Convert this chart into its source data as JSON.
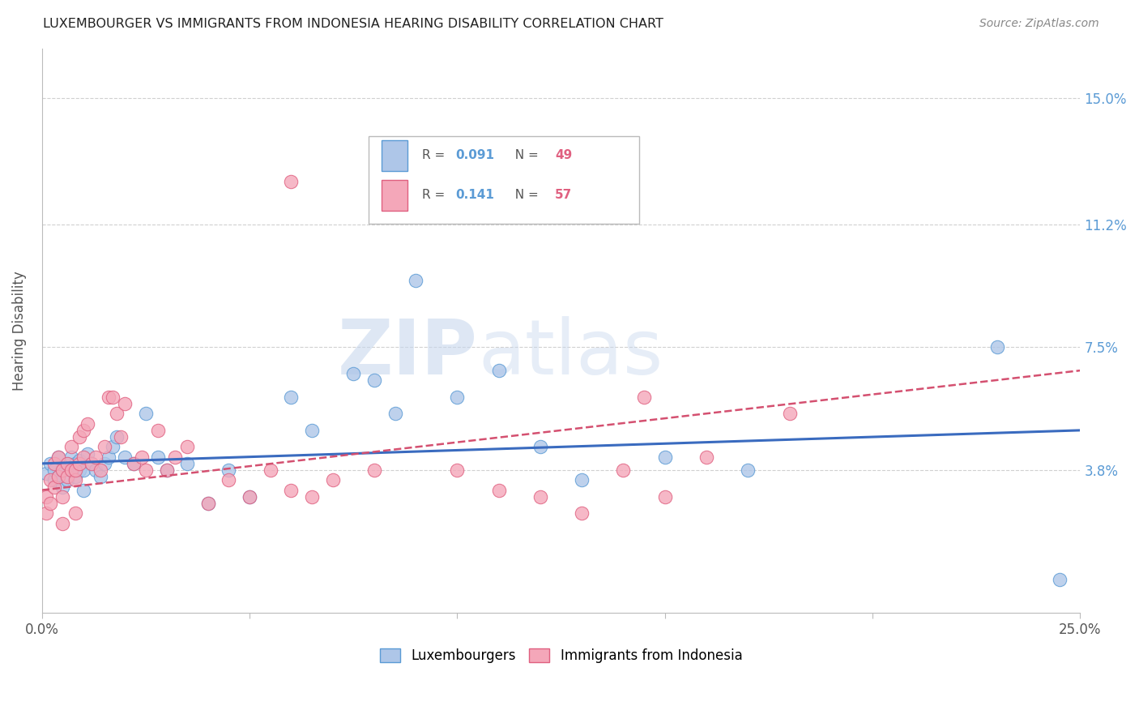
{
  "title": "LUXEMBOURGER VS IMMIGRANTS FROM INDONESIA HEARING DISABILITY CORRELATION CHART",
  "source": "Source: ZipAtlas.com",
  "ylabel": "Hearing Disability",
  "watermark_part1": "ZIP",
  "watermark_part2": "atlas",
  "xlim": [
    0.0,
    0.25
  ],
  "ylim": [
    -0.005,
    0.165
  ],
  "xticks": [
    0.0,
    0.05,
    0.1,
    0.15,
    0.2,
    0.25
  ],
  "yticks_right": [
    0.038,
    0.075,
    0.112,
    0.15
  ],
  "yticklabels_right": [
    "3.8%",
    "7.5%",
    "11.2%",
    "15.0%"
  ],
  "series1_label": "Luxembourgers",
  "series2_label": "Immigrants from Indonesia",
  "series1_R": "0.091",
  "series1_N": "49",
  "series2_R": "0.141",
  "series2_N": "57",
  "series1_color": "#aec6e8",
  "series2_color": "#f4a7b9",
  "series1_edge_color": "#5b9bd5",
  "series2_edge_color": "#e06080",
  "trend1_color": "#3a6bbf",
  "trend2_color": "#d45070",
  "grid_color": "#d0d0d0",
  "title_color": "#222222",
  "right_tick_color": "#5b9bd5",
  "legend_R_color": "#5b9bd5",
  "legend_N_color": "#e06080",
  "series1_x": [
    0.001,
    0.002,
    0.003,
    0.003,
    0.004,
    0.004,
    0.005,
    0.005,
    0.006,
    0.006,
    0.007,
    0.007,
    0.008,
    0.008,
    0.009,
    0.009,
    0.01,
    0.01,
    0.011,
    0.012,
    0.013,
    0.014,
    0.015,
    0.016,
    0.017,
    0.018,
    0.02,
    0.022,
    0.025,
    0.028,
    0.03,
    0.035,
    0.04,
    0.045,
    0.05,
    0.06,
    0.065,
    0.075,
    0.08,
    0.085,
    0.09,
    0.1,
    0.11,
    0.12,
    0.13,
    0.15,
    0.17,
    0.23,
    0.245
  ],
  "series1_y": [
    0.037,
    0.04,
    0.035,
    0.038,
    0.036,
    0.042,
    0.033,
    0.038,
    0.04,
    0.035,
    0.038,
    0.042,
    0.036,
    0.04,
    0.038,
    0.041,
    0.038,
    0.032,
    0.043,
    0.04,
    0.038,
    0.036,
    0.04,
    0.042,
    0.045,
    0.048,
    0.042,
    0.04,
    0.055,
    0.042,
    0.038,
    0.04,
    0.028,
    0.038,
    0.03,
    0.06,
    0.05,
    0.067,
    0.065,
    0.055,
    0.095,
    0.06,
    0.068,
    0.045,
    0.035,
    0.042,
    0.038,
    0.075,
    0.005
  ],
  "series2_x": [
    0.001,
    0.001,
    0.002,
    0.002,
    0.003,
    0.003,
    0.004,
    0.004,
    0.005,
    0.005,
    0.005,
    0.006,
    0.006,
    0.007,
    0.007,
    0.008,
    0.008,
    0.008,
    0.009,
    0.009,
    0.01,
    0.01,
    0.011,
    0.012,
    0.013,
    0.014,
    0.015,
    0.016,
    0.017,
    0.018,
    0.019,
    0.02,
    0.022,
    0.024,
    0.025,
    0.028,
    0.03,
    0.032,
    0.035,
    0.04,
    0.045,
    0.05,
    0.055,
    0.06,
    0.065,
    0.07,
    0.08,
    0.1,
    0.11,
    0.12,
    0.13,
    0.14,
    0.145,
    0.15,
    0.16,
    0.18,
    0.06
  ],
  "series2_y": [
    0.03,
    0.025,
    0.028,
    0.035,
    0.033,
    0.04,
    0.036,
    0.042,
    0.038,
    0.03,
    0.022,
    0.036,
    0.04,
    0.038,
    0.045,
    0.035,
    0.038,
    0.025,
    0.04,
    0.048,
    0.042,
    0.05,
    0.052,
    0.04,
    0.042,
    0.038,
    0.045,
    0.06,
    0.06,
    0.055,
    0.048,
    0.058,
    0.04,
    0.042,
    0.038,
    0.05,
    0.038,
    0.042,
    0.045,
    0.028,
    0.035,
    0.03,
    0.038,
    0.032,
    0.03,
    0.035,
    0.038,
    0.038,
    0.032,
    0.03,
    0.025,
    0.038,
    0.06,
    0.03,
    0.042,
    0.055,
    0.125
  ]
}
